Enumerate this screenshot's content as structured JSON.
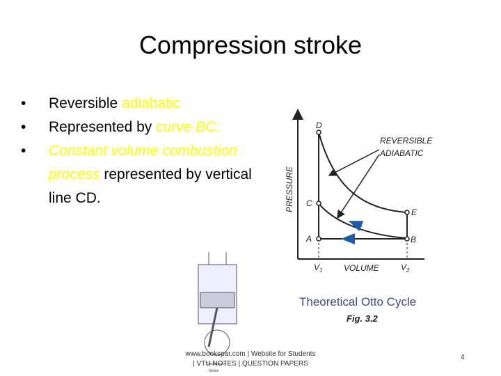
{
  "slide": {
    "title": "Compression stroke",
    "bullets": [
      [
        "Reversible ",
        "adiabatic"
      ],
      [
        "Represented by ",
        "curve BC."
      ],
      [
        "Constant volume combustion process",
        " represented by vertical line CD."
      ]
    ],
    "figure": {
      "points": {
        "d": "D",
        "c": "C",
        "a": "A",
        "b": "B",
        "e": "E"
      },
      "v1": [
        "V",
        "1"
      ],
      "v2": [
        "V",
        "2"
      ],
      "y_axis": "PRESSURE",
      "x_axis": "VOLUME",
      "callout": [
        "REVERSIBLE",
        "ADIABATIC"
      ],
      "caption": "Theoretical Otto Cycle",
      "fig_number": "Fig. 3.2"
    },
    "piston_caption": [
      "Compression",
      "Stroke"
    ],
    "footer": [
      "www.bookspar.com | Website for Students",
      "| VTU NOTES | QUESTION PAPERS"
    ],
    "page_number": "4"
  }
}
